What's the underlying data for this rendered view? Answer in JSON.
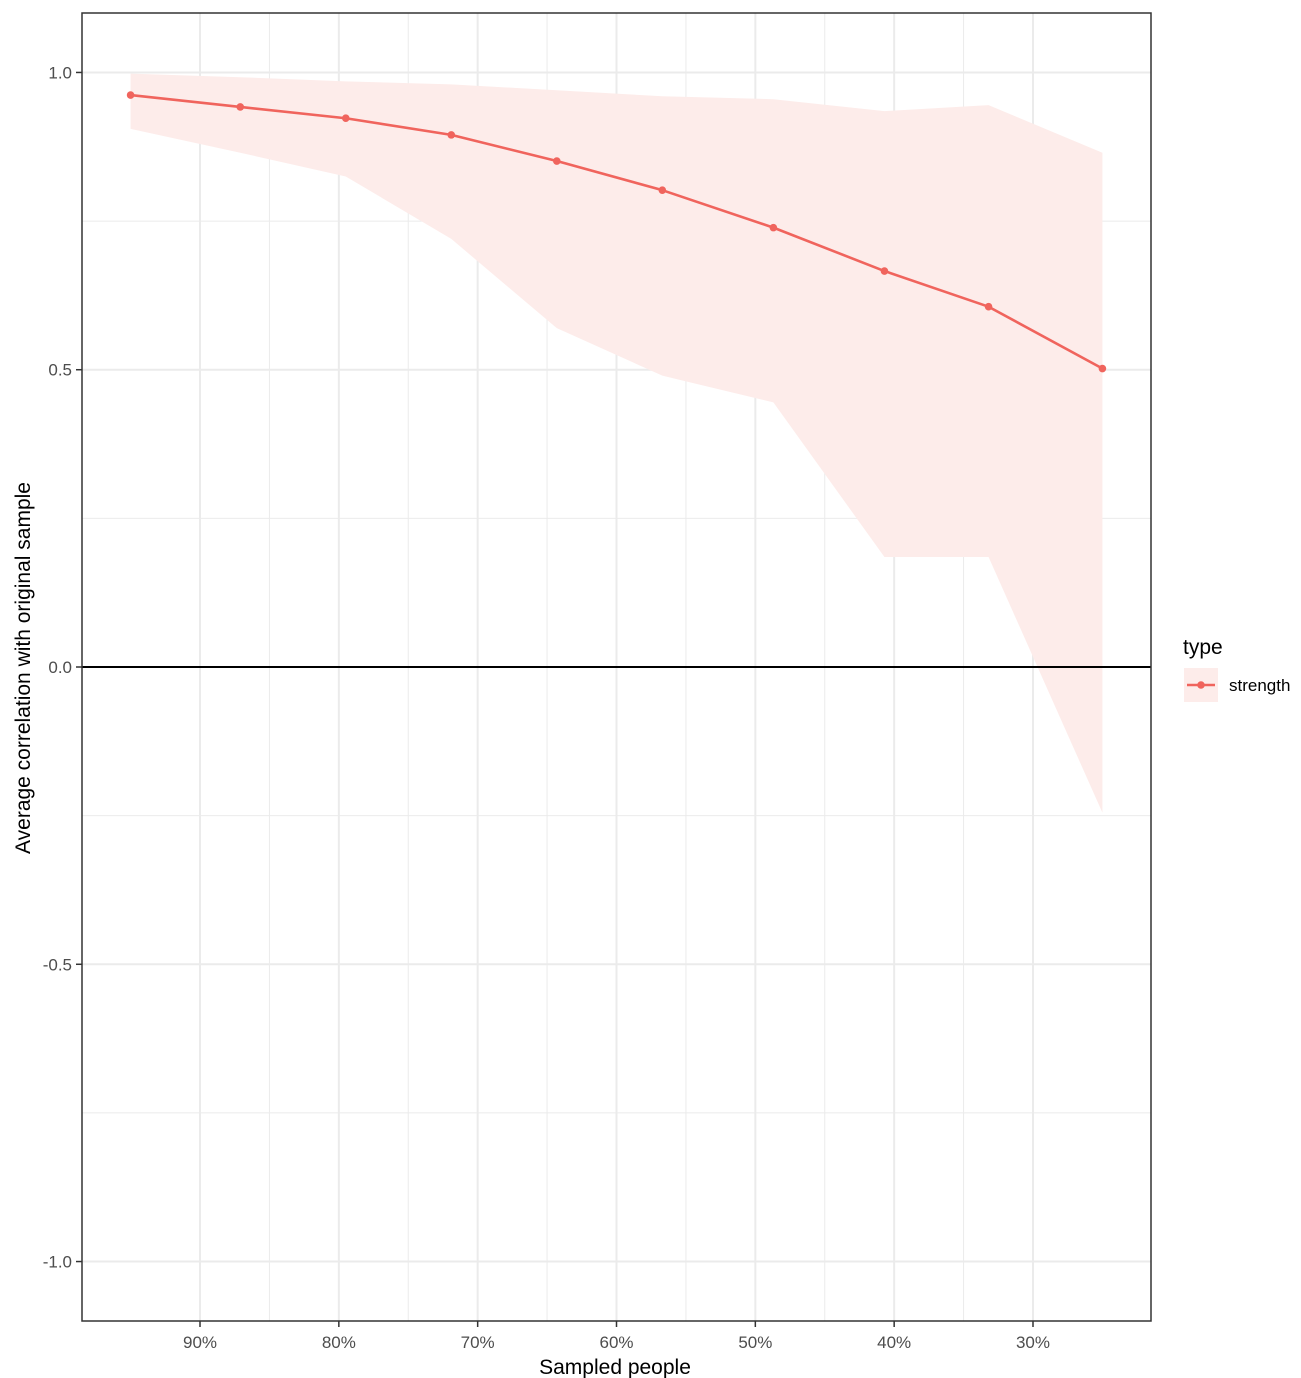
{
  "chart_data": {
    "type": "line",
    "xlabel": "Sampled people",
    "ylabel": "Average correlation with original sample",
    "x_reversed": true,
    "xlim": [
      0.215,
      0.985
    ],
    "ylim": [
      -1.1,
      1.1
    ],
    "x_ticks": [
      {
        "value": 0.9,
        "label": "90%"
      },
      {
        "value": 0.8,
        "label": "80%"
      },
      {
        "value": 0.7,
        "label": "70%"
      },
      {
        "value": 0.6,
        "label": "60%"
      },
      {
        "value": 0.5,
        "label": "50%"
      },
      {
        "value": 0.4,
        "label": "40%"
      },
      {
        "value": 0.3,
        "label": "30%"
      }
    ],
    "y_ticks": [
      {
        "value": 1.0,
        "label": "1.0"
      },
      {
        "value": 0.5,
        "label": "0.5"
      },
      {
        "value": 0.0,
        "label": "0.0"
      },
      {
        "value": -0.5,
        "label": "-0.5"
      },
      {
        "value": -1.0,
        "label": "-1.0"
      }
    ],
    "x_minor_ticks": [
      0.85,
      0.75,
      0.65,
      0.55,
      0.45,
      0.35
    ],
    "y_minor_ticks": [
      0.75,
      0.25,
      -0.25,
      -0.75
    ],
    "grid": true,
    "hline_y": 0.0,
    "legend": {
      "title": "type",
      "placement": "right",
      "entries": [
        "strength"
      ]
    },
    "colors": {
      "line": "#f0645d",
      "ribbon": "#fdecea",
      "grid": "#ebebeb",
      "panel_border": "#333333"
    },
    "series": [
      {
        "name": "strength",
        "points": [
          {
            "x": 0.95,
            "y": 0.962,
            "lower": 0.905,
            "upper": 0.998
          },
          {
            "x": 0.871,
            "y": 0.942,
            "lower": 0.865,
            "upper": 0.992
          },
          {
            "x": 0.795,
            "y": 0.923,
            "lower": 0.825,
            "upper": 0.985
          },
          {
            "x": 0.719,
            "y": 0.895,
            "lower": 0.72,
            "upper": 0.98
          },
          {
            "x": 0.643,
            "y": 0.851,
            "lower": 0.57,
            "upper": 0.97
          },
          {
            "x": 0.567,
            "y": 0.802,
            "lower": 0.49,
            "upper": 0.96
          },
          {
            "x": 0.487,
            "y": 0.739,
            "lower": 0.445,
            "upper": 0.955
          },
          {
            "x": 0.407,
            "y": 0.666,
            "lower": 0.185,
            "upper": 0.935
          },
          {
            "x": 0.332,
            "y": 0.606,
            "lower": 0.185,
            "upper": 0.945
          },
          {
            "x": 0.25,
            "y": 0.502,
            "lower": -0.245,
            "upper": 0.865
          }
        ]
      }
    ]
  }
}
